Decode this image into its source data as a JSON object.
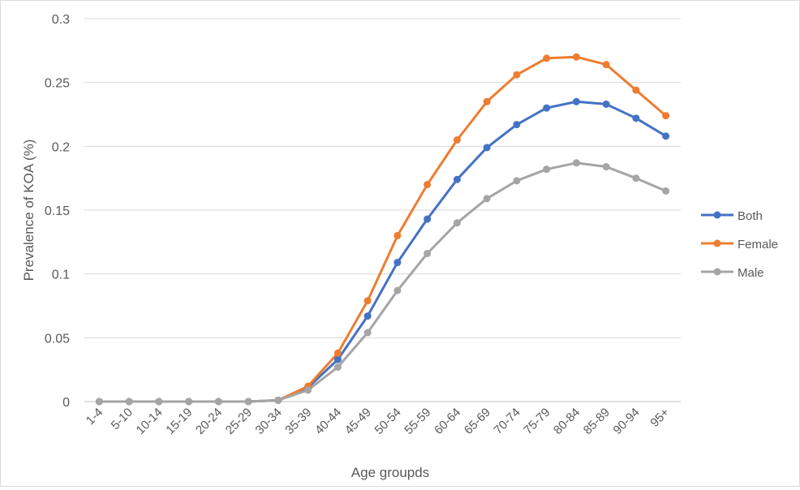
{
  "chart_data": {
    "type": "line",
    "xlabel": "Age groupds",
    "ylabel": "Prevalence of KOA (%)",
    "categories": [
      "1-4",
      "5-10",
      "10-14",
      "15-19",
      "20-24",
      "25-29",
      "30-34",
      "35-39",
      "40-44",
      "45-49",
      "50-54",
      "55-59",
      "60-64",
      "65-69",
      "70-74",
      "75-79",
      "80-84",
      "85-89",
      "90-94",
      "95+"
    ],
    "ylim": [
      0,
      0.3
    ],
    "yticks": [
      "0",
      "0.05",
      "0.1",
      "0.15",
      "0.2",
      "0.25",
      "0.3"
    ],
    "grid": true,
    "legend_position": "right",
    "series": [
      {
        "name": "Both",
        "color": "#4472C4",
        "values": [
          0,
          0,
          0,
          0,
          0,
          0,
          0.001,
          0.011,
          0.033,
          0.067,
          0.109,
          0.143,
          0.174,
          0.199,
          0.217,
          0.23,
          0.235,
          0.233,
          0.222,
          0.208
        ]
      },
      {
        "name": "Female",
        "color": "#ED7D31",
        "values": [
          0,
          0,
          0,
          0,
          0,
          0,
          0.001,
          0.012,
          0.038,
          0.079,
          0.13,
          0.17,
          0.205,
          0.235,
          0.256,
          0.269,
          0.27,
          0.264,
          0.244,
          0.224
        ]
      },
      {
        "name": "Male",
        "color": "#A5A5A5",
        "values": [
          0,
          0,
          0,
          0,
          0,
          0,
          0.001,
          0.009,
          0.027,
          0.054,
          0.087,
          0.116,
          0.14,
          0.159,
          0.173,
          0.182,
          0.187,
          0.184,
          0.175,
          0.165
        ]
      }
    ]
  }
}
